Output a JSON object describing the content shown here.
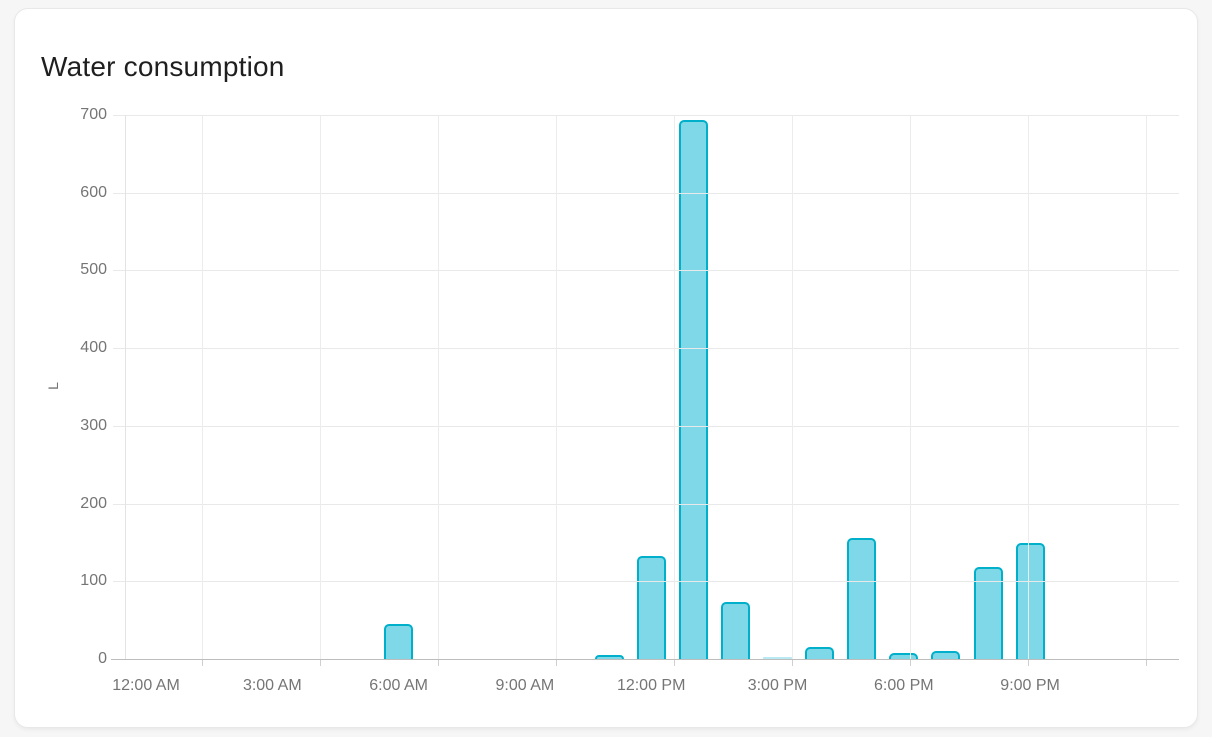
{
  "card": {
    "title": "Water consumption"
  },
  "chart_data": {
    "type": "bar",
    "title": "Water consumption",
    "xlabel": "",
    "ylabel": "L",
    "unit": "L",
    "ylim": [
      0,
      700
    ],
    "yticks": [
      0,
      100,
      200,
      300,
      400,
      500,
      600,
      700
    ],
    "x_tick_labels": [
      "12:00 AM",
      "3:00 AM",
      "6:00 AM",
      "9:00 AM",
      "12:00 PM",
      "3:00 PM",
      "6:00 PM",
      "9:00 PM"
    ],
    "categories": [
      "12 AM",
      "1 AM",
      "2 AM",
      "3 AM",
      "4 AM",
      "5 AM",
      "6 AM",
      "7 AM",
      "8 AM",
      "9 AM",
      "10 AM",
      "11 AM",
      "12 PM",
      "1 PM",
      "2 PM",
      "3 PM",
      "4 PM",
      "5 PM",
      "6 PM",
      "7 PM",
      "8 PM",
      "9 PM",
      "10 PM",
      "11 PM"
    ],
    "values": [
      0,
      0,
      0,
      0,
      0,
      0,
      45,
      0,
      0,
      0,
      0,
      5,
      133,
      694,
      73,
      2,
      16,
      156,
      8,
      10,
      118,
      149,
      0,
      0
    ],
    "grid": true,
    "legend_position": "none",
    "colors": {
      "bar_fill": "#7fd8e7",
      "bar_stroke": "#00afc9",
      "gridline": "#e9e9e9",
      "axis_line": "#bdbdbd",
      "tick_text": "#757575",
      "title_text": "#1f1f1f"
    }
  }
}
